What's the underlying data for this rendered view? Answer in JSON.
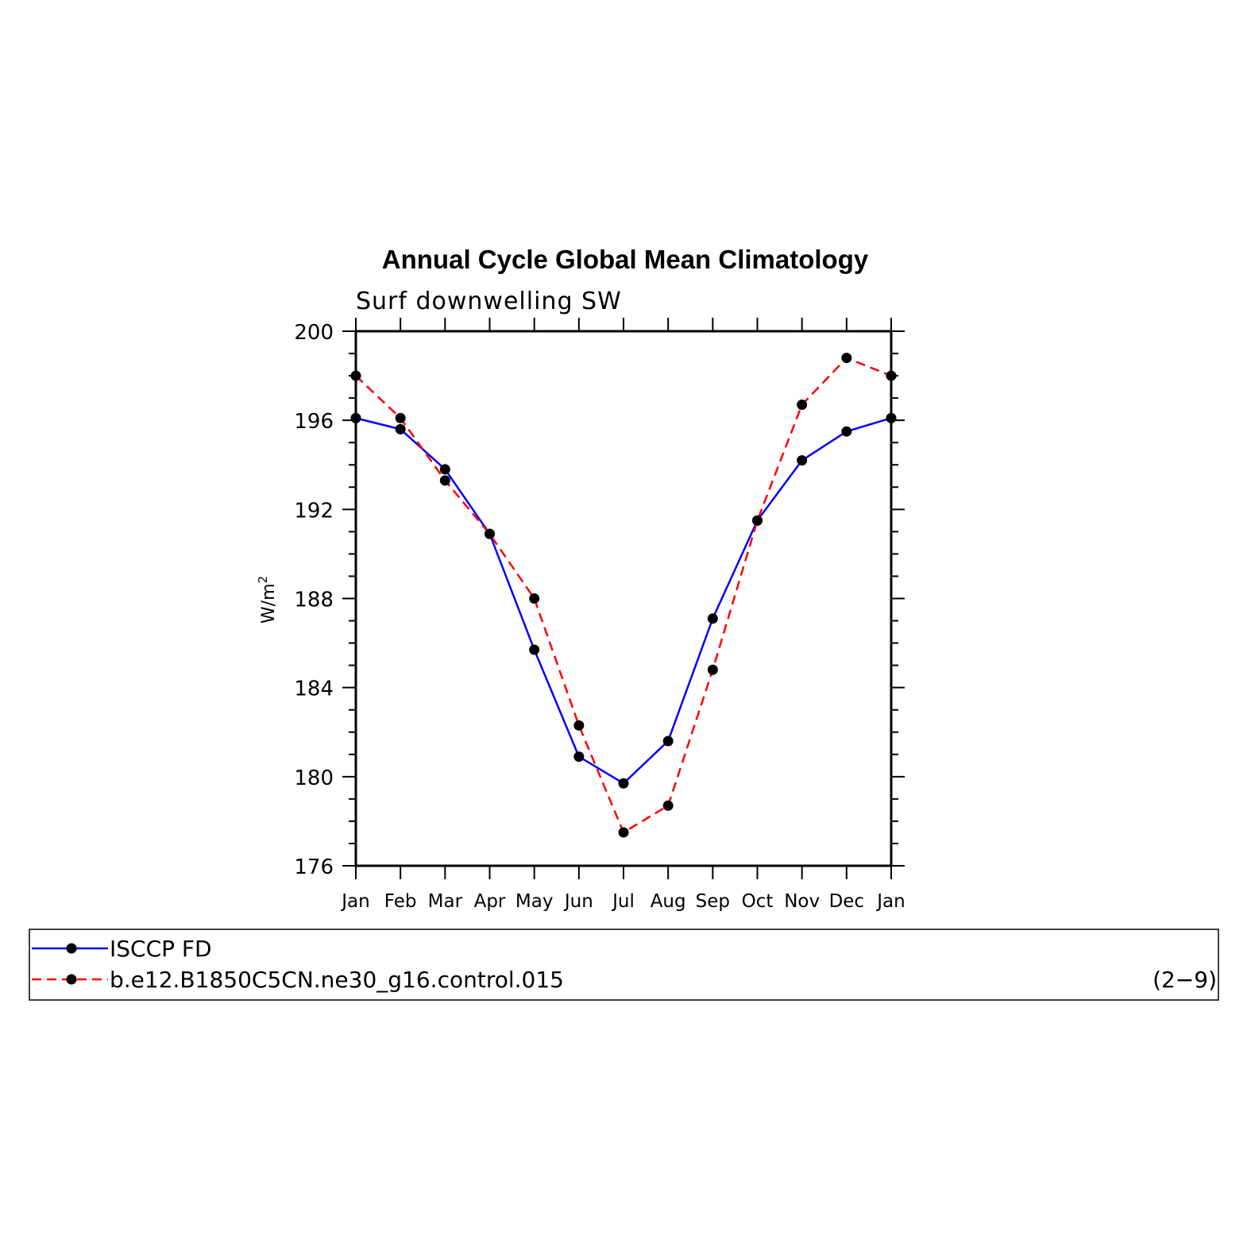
{
  "chart_data": {
    "type": "line",
    "title": "Annual Cycle Global Mean Climatology",
    "subtitle": "Surf downwelling SW",
    "ylabel": "W/m",
    "ylabel_sup": "2",
    "ylim": [
      176,
      200
    ],
    "yticks": [
      "176",
      "180",
      "184",
      "188",
      "192",
      "196",
      "200"
    ],
    "categories": [
      "Jan",
      "Feb",
      "Mar",
      "Apr",
      "May",
      "Jun",
      "Jul",
      "Aug",
      "Sep",
      "Oct",
      "Nov",
      "Dec",
      "Jan"
    ],
    "series": [
      {
        "name": "ISCCP FD",
        "color": "#0000ff",
        "dash": "solid",
        "values": [
          196.1,
          195.6,
          193.8,
          190.9,
          185.7,
          180.9,
          179.7,
          181.6,
          187.1,
          191.5,
          194.2,
          195.5,
          196.1
        ]
      },
      {
        "name": "b.e12.B1850C5CN.ne30_g16.control.015",
        "color": "#ff0000",
        "dash": "dashed",
        "values": [
          198.0,
          196.1,
          193.3,
          190.9,
          188.0,
          182.3,
          177.5,
          178.7,
          184.8,
          191.5,
          196.7,
          198.8,
          198.0
        ]
      }
    ],
    "legend_position": "bottom",
    "annotation": "(2−9)",
    "grid": false
  }
}
